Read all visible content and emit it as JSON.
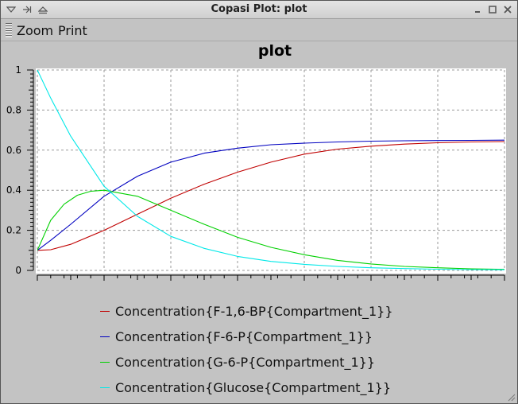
{
  "window": {
    "title": "Copasi Plot: plot"
  },
  "menubar": {
    "zoom_label": "Zoom",
    "print_label": "Print"
  },
  "chart_data": {
    "type": "line",
    "title": "plot",
    "xlim": [
      0,
      70
    ],
    "ylim": [
      0,
      1
    ],
    "x_ticks": [
      0,
      10,
      20,
      30,
      40,
      50,
      60,
      70
    ],
    "y_ticks": [
      0,
      0.2,
      0.4,
      0.6,
      0.8,
      1
    ],
    "grid": true,
    "legend_position": "bottom",
    "series": [
      {
        "name": "Concentration{F-1,6-BP{Compartment_1}}",
        "color": "#c00000",
        "x": [
          0,
          2,
          5,
          10,
          15,
          20,
          25,
          30,
          35,
          40,
          45,
          50,
          55,
          60,
          65,
          70
        ],
        "y": [
          0.1,
          0.103,
          0.13,
          0.2,
          0.28,
          0.36,
          0.43,
          0.49,
          0.54,
          0.58,
          0.605,
          0.62,
          0.63,
          0.637,
          0.641,
          0.643
        ]
      },
      {
        "name": "Concentration{F-6-P{Compartment_1}}",
        "color": "#0000c0",
        "x": [
          0,
          2,
          5,
          10,
          15,
          20,
          25,
          30,
          35,
          40,
          45,
          50,
          55,
          60,
          65,
          70
        ],
        "y": [
          0.1,
          0.15,
          0.23,
          0.37,
          0.47,
          0.54,
          0.585,
          0.61,
          0.627,
          0.635,
          0.641,
          0.645,
          0.647,
          0.648,
          0.649,
          0.65
        ]
      },
      {
        "name": "Concentration{G-6-P{Compartment_1}}",
        "color": "#00d000",
        "x": [
          0,
          2,
          4,
          6,
          8,
          10,
          15,
          20,
          25,
          30,
          35,
          40,
          45,
          50,
          55,
          60,
          65,
          70
        ],
        "y": [
          0.1,
          0.25,
          0.33,
          0.375,
          0.395,
          0.4,
          0.37,
          0.3,
          0.23,
          0.165,
          0.115,
          0.078,
          0.05,
          0.032,
          0.02,
          0.013,
          0.008,
          0.005
        ]
      },
      {
        "name": "Concentration{Glucose{Compartment_1}}",
        "color": "#00e8e8",
        "x": [
          0,
          2,
          5,
          10,
          15,
          20,
          25,
          30,
          35,
          40,
          45,
          50,
          55,
          60,
          65,
          70
        ],
        "y": [
          1.0,
          0.86,
          0.67,
          0.42,
          0.27,
          0.17,
          0.11,
          0.07,
          0.045,
          0.03,
          0.02,
          0.013,
          0.009,
          0.006,
          0.004,
          0.003
        ]
      }
    ]
  }
}
